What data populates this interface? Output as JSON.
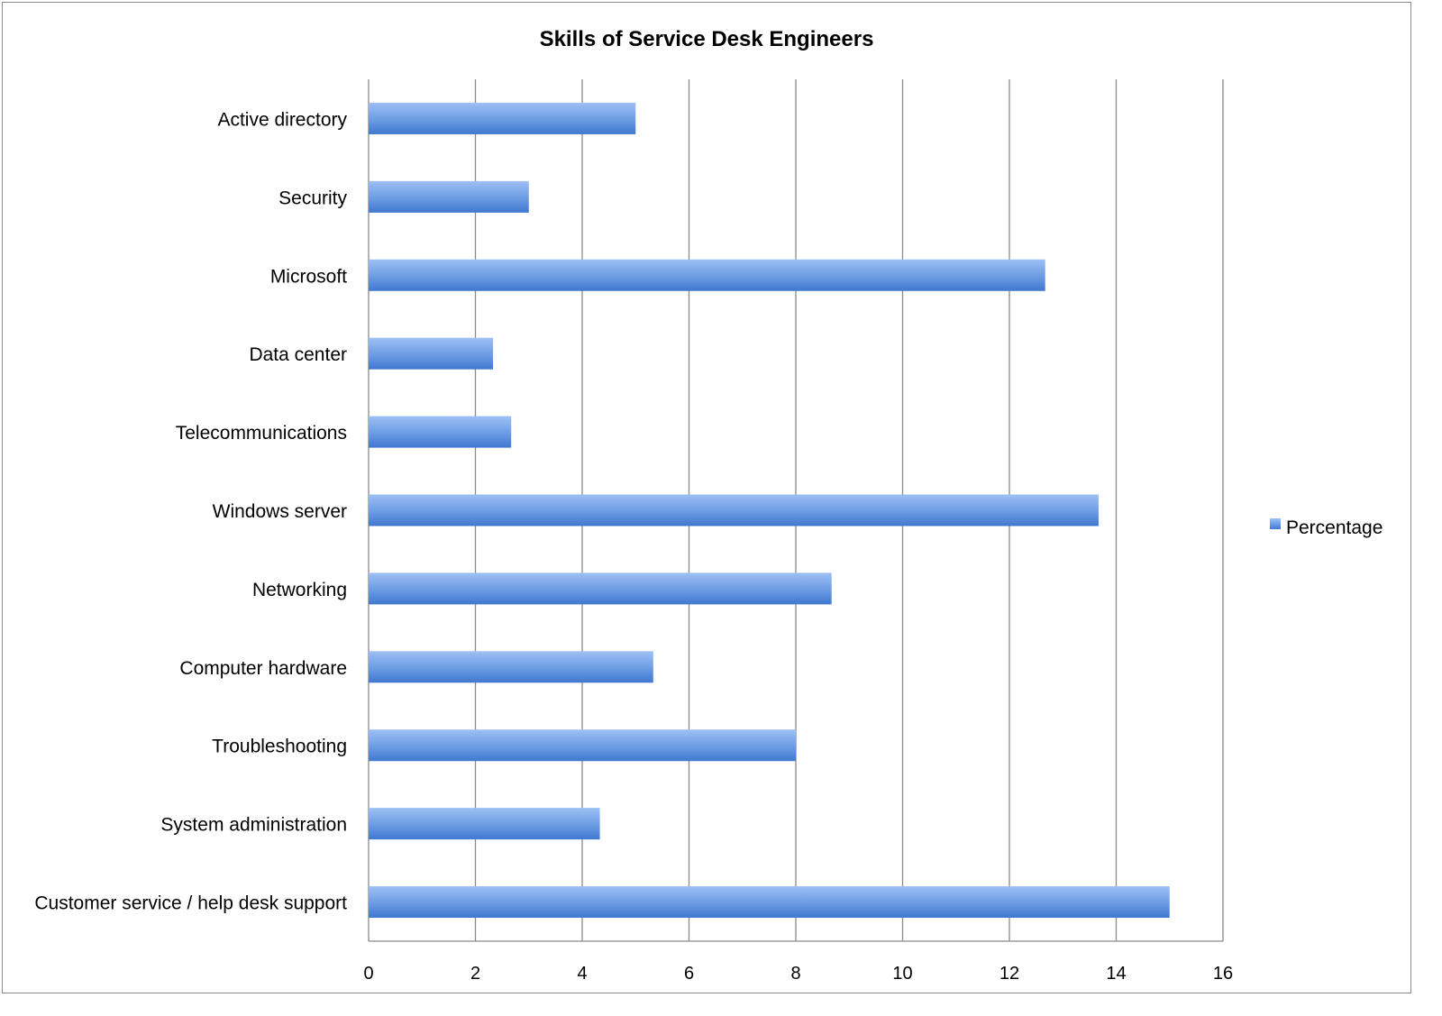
{
  "chart_data": {
    "type": "bar",
    "orientation": "horizontal",
    "title": "Skills of Service Desk Engineers",
    "xlabel": "",
    "ylabel": "",
    "xlim": [
      0,
      16
    ],
    "x_ticks": [
      "0",
      "2",
      "4",
      "6",
      "8",
      "10",
      "12",
      "14",
      "16"
    ],
    "grid": true,
    "legend_position": "right",
    "categories": [
      "Active directory",
      "Security",
      "Microsoft",
      "Data center",
      "Telecommunications",
      "Windows server",
      "Networking",
      "Computer hardware",
      "Troubleshooting",
      "System administration",
      "Customer service / help desk support"
    ],
    "series": [
      {
        "name": "Percentage",
        "color": "#5a8fdc",
        "values": [
          5.0,
          3.0,
          12.67,
          2.33,
          2.67,
          13.67,
          8.67,
          5.33,
          8.0,
          4.33,
          15.0
        ]
      }
    ]
  }
}
